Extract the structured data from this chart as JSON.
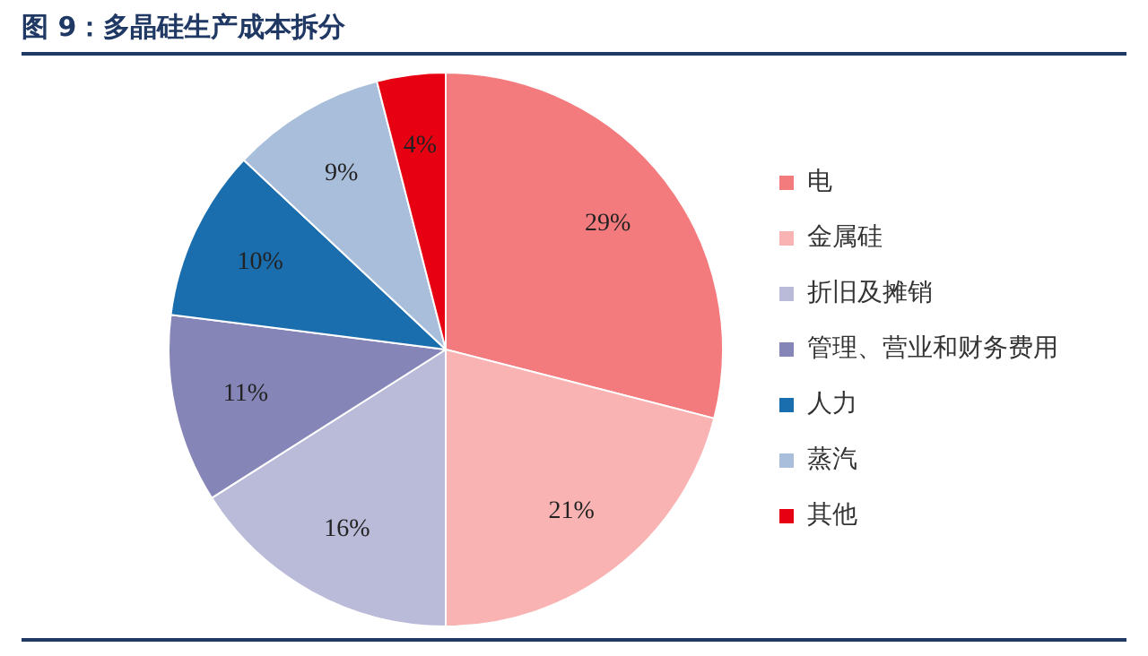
{
  "chart_data": {
    "type": "pie",
    "title": "图 9：多晶硅生产成本拆分",
    "categories": [
      "电",
      "金属硅",
      "折旧及摊销",
      "管理、营业和财务费用",
      "人力",
      "蒸汽",
      "其他"
    ],
    "values": [
      29,
      21,
      16,
      11,
      10,
      9,
      4
    ],
    "colors": [
      "#f47b7d",
      "#f9b3b3",
      "#babad9",
      "#8585b8",
      "#1a6eae",
      "#a9bedb",
      "#e60012"
    ],
    "value_labels": [
      "29%",
      "21%",
      "16%",
      "11%",
      "10%",
      "9%",
      "4%"
    ],
    "legend": "right"
  }
}
